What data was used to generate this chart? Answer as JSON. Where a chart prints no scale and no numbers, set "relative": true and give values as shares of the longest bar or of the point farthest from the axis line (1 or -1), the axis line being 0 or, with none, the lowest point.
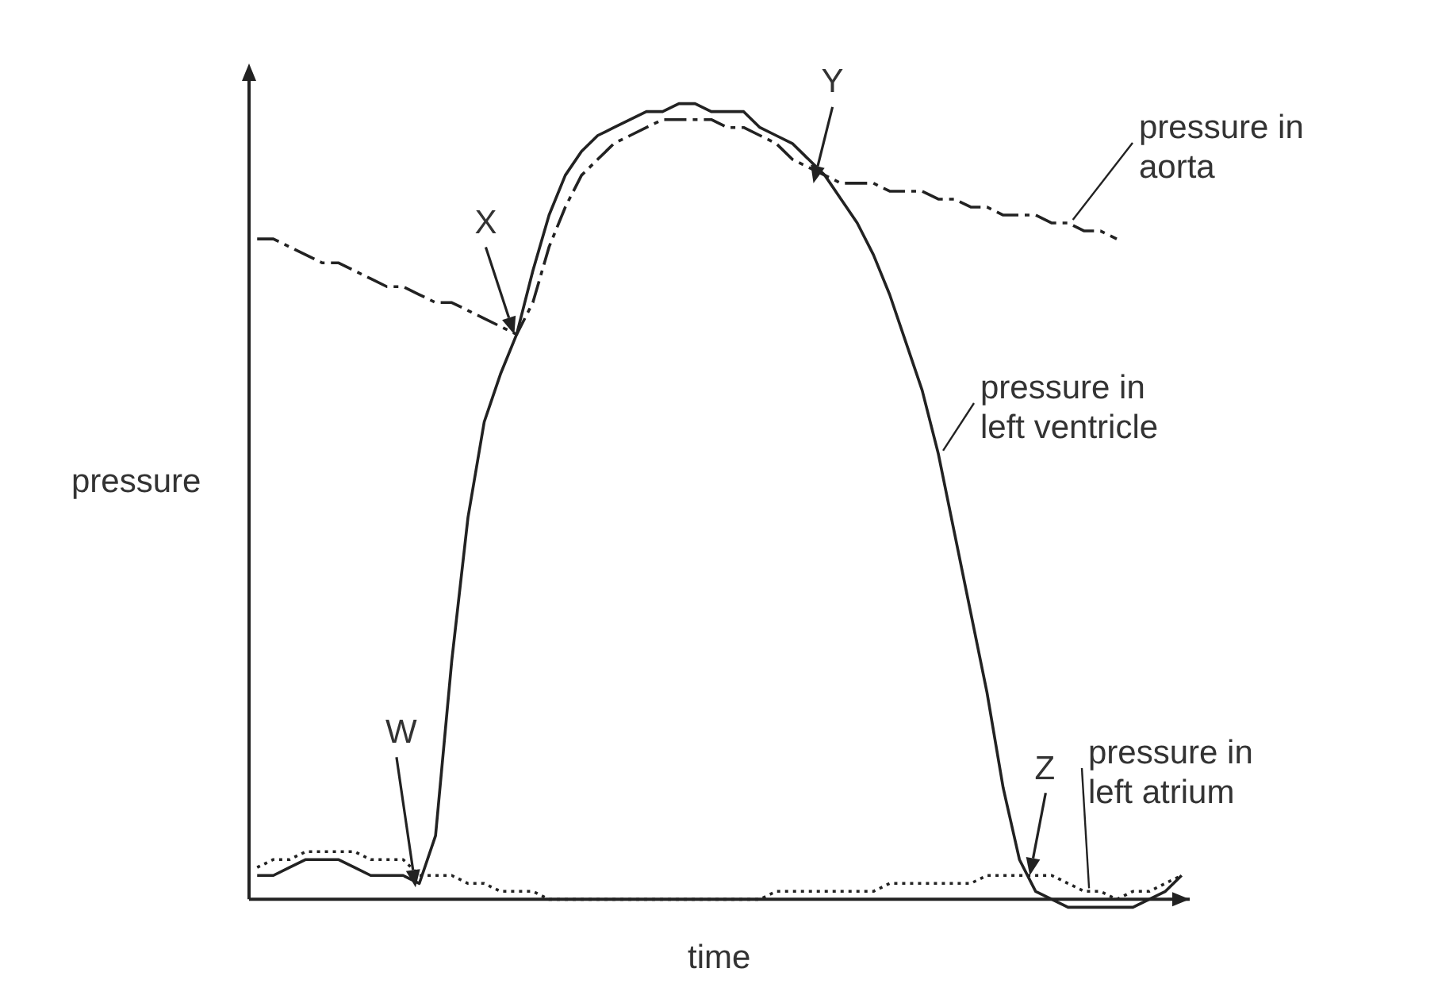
{
  "chart_data": {
    "type": "line",
    "xlabel": "time",
    "ylabel": "pressure",
    "relative": true,
    "marker": "none",
    "categories": [
      null,
      null,
      null,
      null,
      null,
      null,
      null,
      null,
      null,
      null,
      null,
      null,
      null,
      null,
      null,
      null,
      null,
      null,
      null,
      null,
      null,
      null,
      null,
      null,
      null,
      null,
      null,
      null,
      null,
      null,
      null,
      null,
      null,
      null,
      null,
      null,
      null,
      null,
      null,
      null,
      null,
      null,
      null,
      null,
      null,
      null,
      null,
      null,
      null,
      null,
      null,
      null,
      null,
      null,
      null,
      null,
      null,
      null
    ],
    "series": [
      {
        "name": "pressure in aorta",
        "color": "#222222",
        "line_style": "dashed",
        "values": [
          0.83,
          0.83,
          0.82,
          0.81,
          0.8,
          0.8,
          0.79,
          0.78,
          0.77,
          0.77,
          0.76,
          0.75,
          0.75,
          0.74,
          0.73,
          0.72,
          0.71,
          0.75,
          0.82,
          0.87,
          0.91,
          0.93,
          0.95,
          0.96,
          0.97,
          0.98,
          0.98,
          0.98,
          0.98,
          0.97,
          0.97,
          0.96,
          0.95,
          0.93,
          0.92,
          0.91,
          0.9,
          0.9,
          0.9,
          0.89,
          0.89,
          0.89,
          0.88,
          0.88,
          0.87,
          0.87,
          0.86,
          0.86,
          0.86,
          0.85,
          0.85,
          0.84,
          0.84,
          0.83,
          null,
          null,
          null,
          null
        ]
      },
      {
        "name": "pressure in left ventricle",
        "color": "#222222",
        "line_style": "solid",
        "values": [
          0.03,
          0.03,
          0.04,
          0.05,
          0.05,
          0.05,
          0.04,
          0.03,
          0.03,
          0.03,
          0.02,
          0.08,
          0.3,
          0.48,
          0.6,
          0.66,
          0.71,
          0.79,
          0.86,
          0.91,
          0.94,
          0.96,
          0.97,
          0.98,
          0.99,
          0.99,
          1,
          1,
          0.99,
          0.99,
          0.99,
          0.97,
          0.96,
          0.95,
          0.93,
          0.91,
          0.88,
          0.85,
          0.81,
          0.76,
          0.7,
          0.64,
          0.56,
          0.46,
          0.36,
          0.26,
          0.14,
          0.05,
          0.01,
          0,
          -0.01,
          -0.01,
          -0.01,
          -0.01,
          -0.01,
          0,
          0.01,
          0.03
        ]
      },
      {
        "name": "pressure in left atrium",
        "color": "#222222",
        "line_style": "dotted",
        "values": [
          0.04,
          0.05,
          0.05,
          0.06,
          0.06,
          0.06,
          0.06,
          0.05,
          0.05,
          0.05,
          0.03,
          0.03,
          0.03,
          0.02,
          0.02,
          0.01,
          0.01,
          0.01,
          0,
          0,
          0,
          0,
          0,
          0,
          0,
          0,
          0,
          0,
          0,
          0,
          0,
          0,
          0.01,
          0.01,
          0.01,
          0.01,
          0.01,
          0.01,
          0.01,
          0.02,
          0.02,
          0.02,
          0.02,
          0.02,
          0.02,
          0.03,
          0.03,
          0.03,
          0.03,
          0.03,
          0.02,
          0.01,
          0.01,
          0,
          0.01,
          0.01,
          0.02,
          0.03
        ]
      }
    ],
    "annotations": [
      "W",
      "X",
      "Y",
      "Z"
    ]
  }
}
